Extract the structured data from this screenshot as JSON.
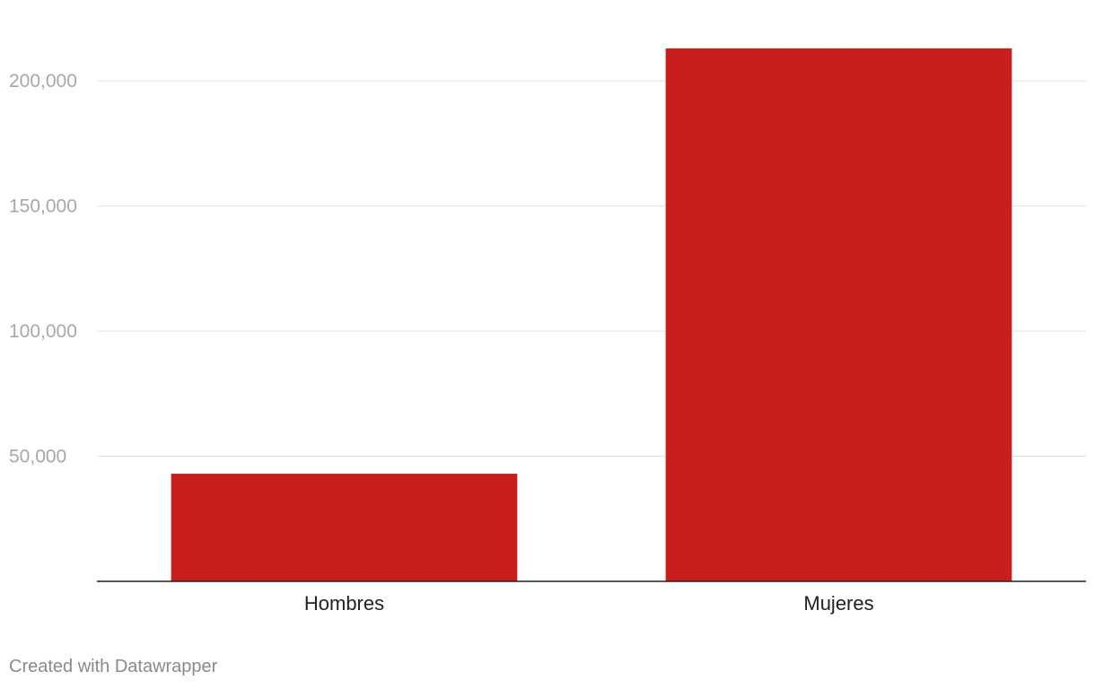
{
  "colors": {
    "bar": "#c81e1e",
    "grid": "#e0e0e0",
    "axis": "#222222",
    "tick_label": "#a8a8a8",
    "category_label": "#222222",
    "credit": "#8a8a8a"
  },
  "chart_data": {
    "type": "bar",
    "categories": [
      "Hombres",
      "Mujeres"
    ],
    "values": [
      43000,
      213000
    ],
    "ylim": [
      0,
      218000
    ],
    "yticks": [
      50000,
      100000,
      150000,
      200000
    ],
    "ytick_labels": [
      "50,000",
      "100,000",
      "150,000",
      "200,000"
    ],
    "grid": true,
    "title": "",
    "xlabel": "",
    "ylabel": ""
  },
  "footer": {
    "credit": "Created with Datawrapper"
  }
}
